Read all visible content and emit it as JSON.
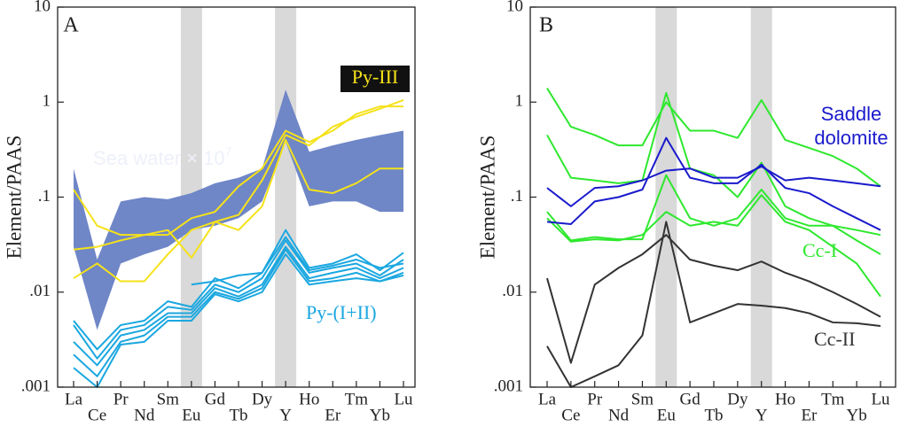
{
  "chart_data": [
    {
      "type": "line",
      "panel": "A",
      "y_label": "Element/PAAS",
      "log_scale": true,
      "highlight": [
        5,
        9
      ],
      "categories": [
        "La",
        "Ce",
        "Pr",
        "Nd",
        "Sm",
        "Eu",
        "Gd",
        "Tb",
        "Dy",
        "Y",
        "Ho",
        "Er",
        "Tm",
        "Yb",
        "Lu"
      ],
      "ylim": [
        0.001,
        10
      ],
      "yticks": [
        {
          "value": 0.001,
          "label": ".001"
        },
        {
          "value": 0.01,
          "label": ".01"
        },
        {
          "value": 0.1,
          "label": ".1"
        },
        1,
        10
      ],
      "series": [
        {
          "kind": "band",
          "name": "Sea water × 10",
          "name_exponent": "7",
          "color": "#6f86c7",
          "high": [
            0.2,
            0.022,
            0.09,
            0.1,
            0.095,
            0.11,
            0.14,
            0.16,
            0.2,
            1.35,
            0.3,
            0.35,
            0.4,
            0.45,
            0.5
          ],
          "low": [
            0.03,
            0.004,
            0.02,
            0.025,
            0.03,
            0.045,
            0.05,
            0.06,
            0.09,
            0.38,
            0.08,
            0.09,
            0.09,
            0.07,
            0.07
          ]
        },
        {
          "kind": "lines",
          "name": "Py-III",
          "color": "#f5e21a",
          "lines": [
            [
              0.12,
              0.05,
              0.04,
              0.04,
              0.045,
              0.023,
              0.055,
              0.045,
              0.08,
              0.4,
              0.12,
              0.11,
              0.14,
              0.2,
              0.2
            ],
            [
              0.028,
              0.03,
              0.035,
              0.04,
              0.04,
              0.06,
              0.07,
              0.13,
              0.2,
              0.5,
              0.38,
              0.5,
              0.75,
              0.9,
              0.9
            ],
            [
              0.014,
              0.02,
              0.013,
              0.013,
              0.025,
              0.045,
              0.055,
              0.065,
              0.15,
              0.45,
              0.35,
              0.55,
              0.7,
              0.85,
              1.05
            ]
          ]
        },
        {
          "kind": "lines",
          "name": "Py-(I+II)",
          "color": "#1aa7e0",
          "lines": [
            [
              0.005,
              0.0025,
              0.0045,
              0.005,
              0.008,
              0.007,
              0.014,
              0.011,
              0.016,
              0.045,
              0.018,
              0.02,
              0.025,
              0.017,
              0.026
            ],
            [
              0.0045,
              0.002,
              0.004,
              0.0045,
              0.007,
              0.0065,
              0.012,
              0.01,
              0.014,
              0.035,
              0.016,
              0.018,
              0.02,
              0.015,
              0.022
            ],
            [
              0.003,
              0.0017,
              0.0035,
              0.004,
              0.006,
              0.006,
              0.011,
              0.009,
              0.012,
              0.03,
              0.014,
              0.016,
              0.018,
              0.014,
              0.018
            ],
            [
              0.0022,
              0.0013,
              0.003,
              0.0035,
              0.0055,
              0.0055,
              0.01,
              0.0085,
              0.011,
              0.028,
              0.013,
              0.014,
              0.016,
              0.013,
              0.016
            ],
            [
              0.0016,
              0.001,
              0.0028,
              0.003,
              0.005,
              0.005,
              0.0095,
              0.008,
              0.01,
              0.025,
              0.012,
              0.013,
              0.014,
              0.013,
              0.015
            ],
            [
              null,
              null,
              null,
              null,
              null,
              0.012,
              0.013,
              0.015,
              0.016,
              0.038,
              0.017,
              0.019,
              0.022,
              0.018,
              0.02
            ]
          ]
        }
      ]
    },
    {
      "type": "line",
      "panel": "B",
      "y_label": "Element/PAAS",
      "log_scale": true,
      "highlight": [
        5,
        9
      ],
      "categories": [
        "La",
        "Ce",
        "Pr",
        "Nd",
        "Sm",
        "Eu",
        "Gd",
        "Tb",
        "Dy",
        "Y",
        "Ho",
        "Er",
        "Tm",
        "Yb",
        "Lu"
      ],
      "ylim": [
        0.001,
        10
      ],
      "yticks": [
        {
          "value": 0.001,
          "label": ".001"
        },
        {
          "value": 0.01,
          "label": ".01"
        },
        {
          "value": 0.1,
          "label": ".1"
        },
        1,
        10
      ],
      "series": [
        {
          "kind": "lines",
          "name": "Cc-I",
          "color": "#2ee82e",
          "lines": [
            [
              1.4,
              0.55,
              0.45,
              0.35,
              0.35,
              1.0,
              0.5,
              0.5,
              0.42,
              1.05,
              0.4,
              0.33,
              0.27,
              0.2,
              0.13
            ],
            [
              0.45,
              0.16,
              0.15,
              0.14,
              0.15,
              1.25,
              0.2,
              0.17,
              0.1,
              0.23,
              0.08,
              0.06,
              0.05,
              0.035,
              0.025
            ],
            [
              0.07,
              0.035,
              0.038,
              0.036,
              0.036,
              0.17,
              0.06,
              0.05,
              0.06,
              0.12,
              0.06,
              0.05,
              0.05,
              0.045,
              0.04
            ],
            [
              0.06,
              0.034,
              0.036,
              0.035,
              0.04,
              0.07,
              0.05,
              0.055,
              0.05,
              0.105,
              0.055,
              0.045,
              0.03,
              0.02,
              0.009
            ]
          ]
        },
        {
          "kind": "lines",
          "name": [
            "Saddle",
            "dolomite"
          ],
          "color": "#1a1acc",
          "lines": [
            [
              0.125,
              0.08,
              0.125,
              0.13,
              0.15,
              0.19,
              0.2,
              0.16,
              0.16,
              0.21,
              0.15,
              0.16,
              0.15,
              0.14,
              0.13
            ],
            [
              0.055,
              0.052,
              0.09,
              0.1,
              0.12,
              0.42,
              0.16,
              0.14,
              0.14,
              0.22,
              0.125,
              0.11,
              0.08,
              0.06,
              0.045
            ]
          ]
        },
        {
          "kind": "lines",
          "name": "Cc-II",
          "color": "#333333",
          "lines": [
            [
              0.014,
              0.0018,
              0.012,
              0.018,
              0.025,
              0.04,
              0.022,
              0.019,
              0.017,
              0.021,
              0.016,
              0.013,
              0.01,
              0.0075,
              0.0055
            ],
            [
              0.0027,
              0.001,
              0.0013,
              0.0017,
              0.0035,
              0.055,
              0.0048,
              0.006,
              0.0075,
              0.0072,
              0.0068,
              0.006,
              0.0048,
              0.0047,
              0.0044
            ]
          ]
        }
      ]
    }
  ]
}
